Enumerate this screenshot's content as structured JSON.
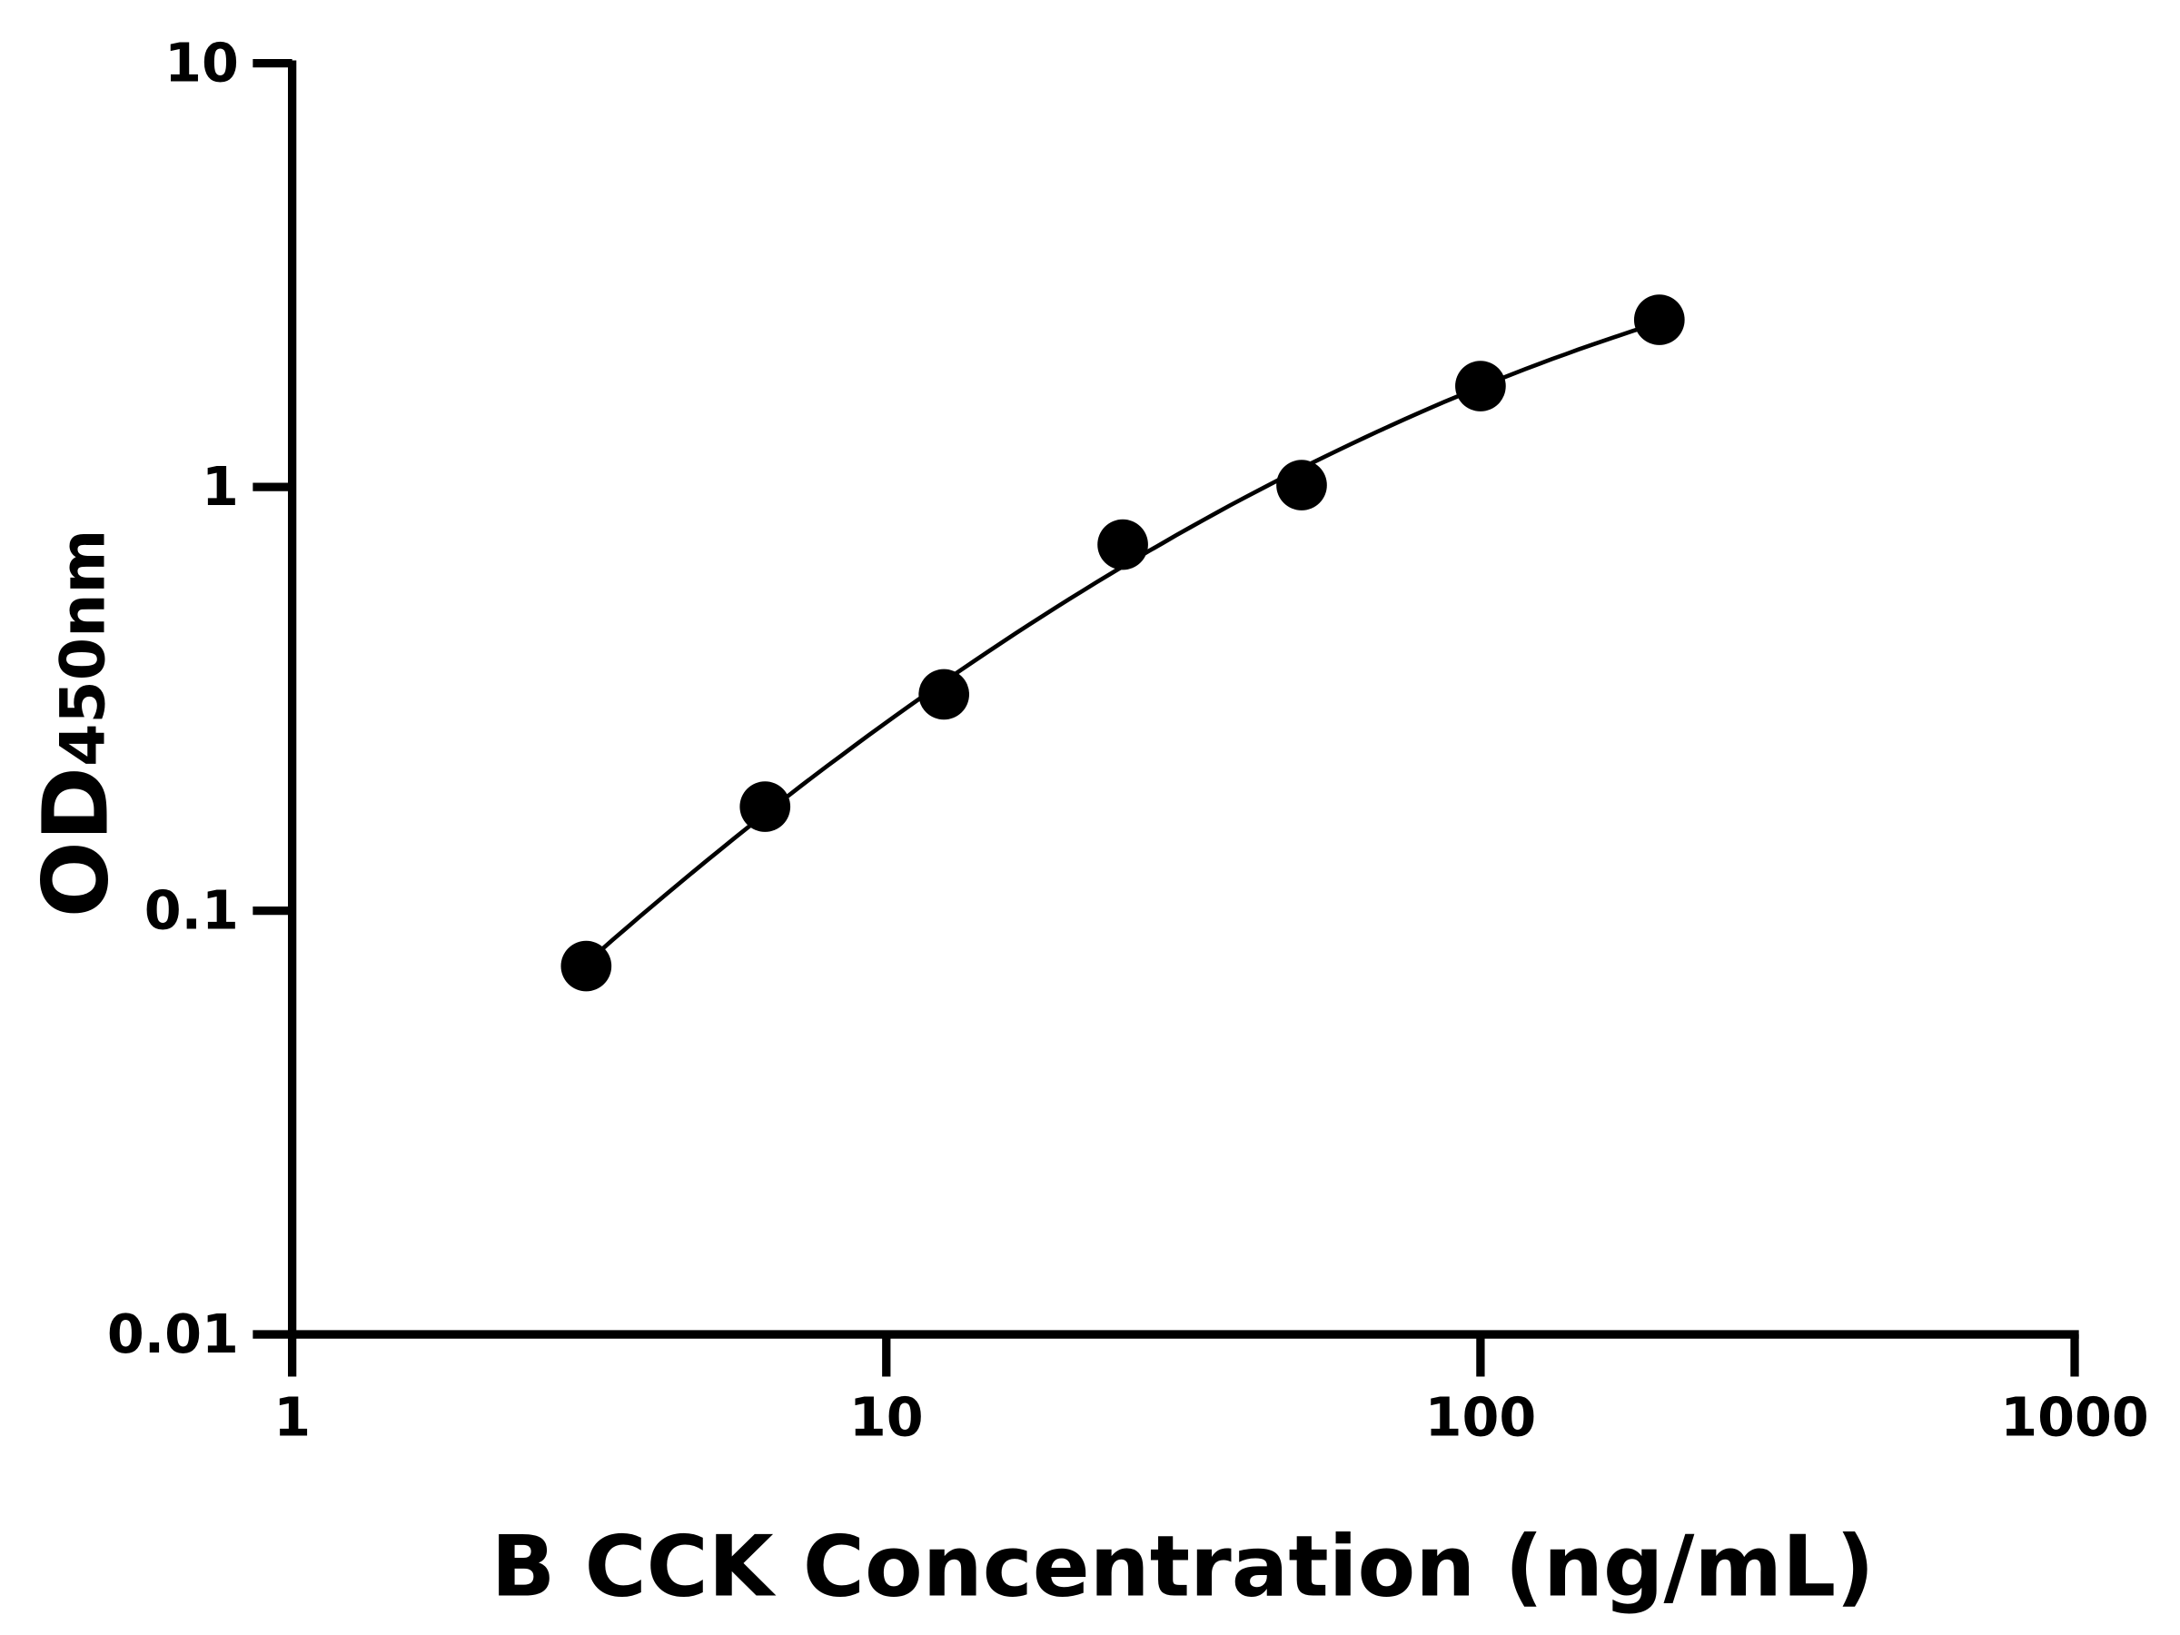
{
  "chart_data": {
    "type": "scatter",
    "xlabel": "B CCK Concentration (ng/mL)",
    "ylabel_main": "OD",
    "ylabel_sub": "450nm",
    "x_scale": "log",
    "y_scale": "log",
    "xlim": [
      1,
      1000
    ],
    "ylim": [
      0.01,
      10
    ],
    "x_ticks": [
      1,
      10,
      100,
      1000
    ],
    "x_tick_labels": [
      "1",
      "10",
      "100",
      "1000"
    ],
    "y_ticks": [
      0.01,
      0.1,
      1,
      10
    ],
    "y_tick_labels": [
      "0.01",
      "0.1",
      "1",
      "10"
    ],
    "grid": false,
    "fit_line": true,
    "colors": {
      "points": "#000000",
      "line": "#000000"
    },
    "series": [
      {
        "x": [
          3.125,
          6.25,
          12.5,
          25,
          50,
          100,
          200
        ],
        "y": [
          0.074,
          0.176,
          0.324,
          0.731,
          1.01,
          1.73,
          2.48
        ]
      }
    ]
  }
}
